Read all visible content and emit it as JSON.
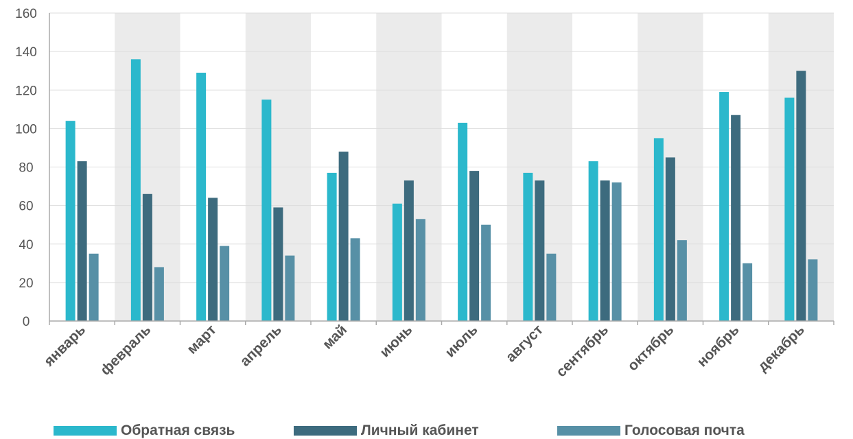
{
  "chart_data": {
    "type": "bar",
    "categories": [
      "январь",
      "февраль",
      "март",
      "апрель",
      "май",
      "июнь",
      "июль",
      "август",
      "сентябрь",
      "октябрь",
      "ноябрь",
      "декабрь"
    ],
    "series": [
      {
        "name": "Обратная связь",
        "color": "#2bb8cc",
        "values": [
          104,
          136,
          129,
          115,
          77,
          61,
          103,
          77,
          83,
          95,
          119,
          116
        ]
      },
      {
        "name": "Личный кабинет",
        "color": "#3d6b7e",
        "values": [
          83,
          66,
          64,
          59,
          88,
          73,
          78,
          73,
          73,
          85,
          107,
          130
        ]
      },
      {
        "name": "Голосовая почта",
        "color": "#5790a6",
        "values": [
          35,
          28,
          39,
          34,
          43,
          53,
          50,
          35,
          72,
          42,
          30,
          32
        ]
      }
    ],
    "yticks": [
      0,
      20,
      40,
      60,
      80,
      100,
      120,
      140,
      160
    ],
    "ylim": [
      0,
      160
    ],
    "title": "",
    "xlabel": "",
    "ylabel": "",
    "grid": true,
    "alternating_band_color": "#ebebeb",
    "legend_position": "bottom"
  }
}
